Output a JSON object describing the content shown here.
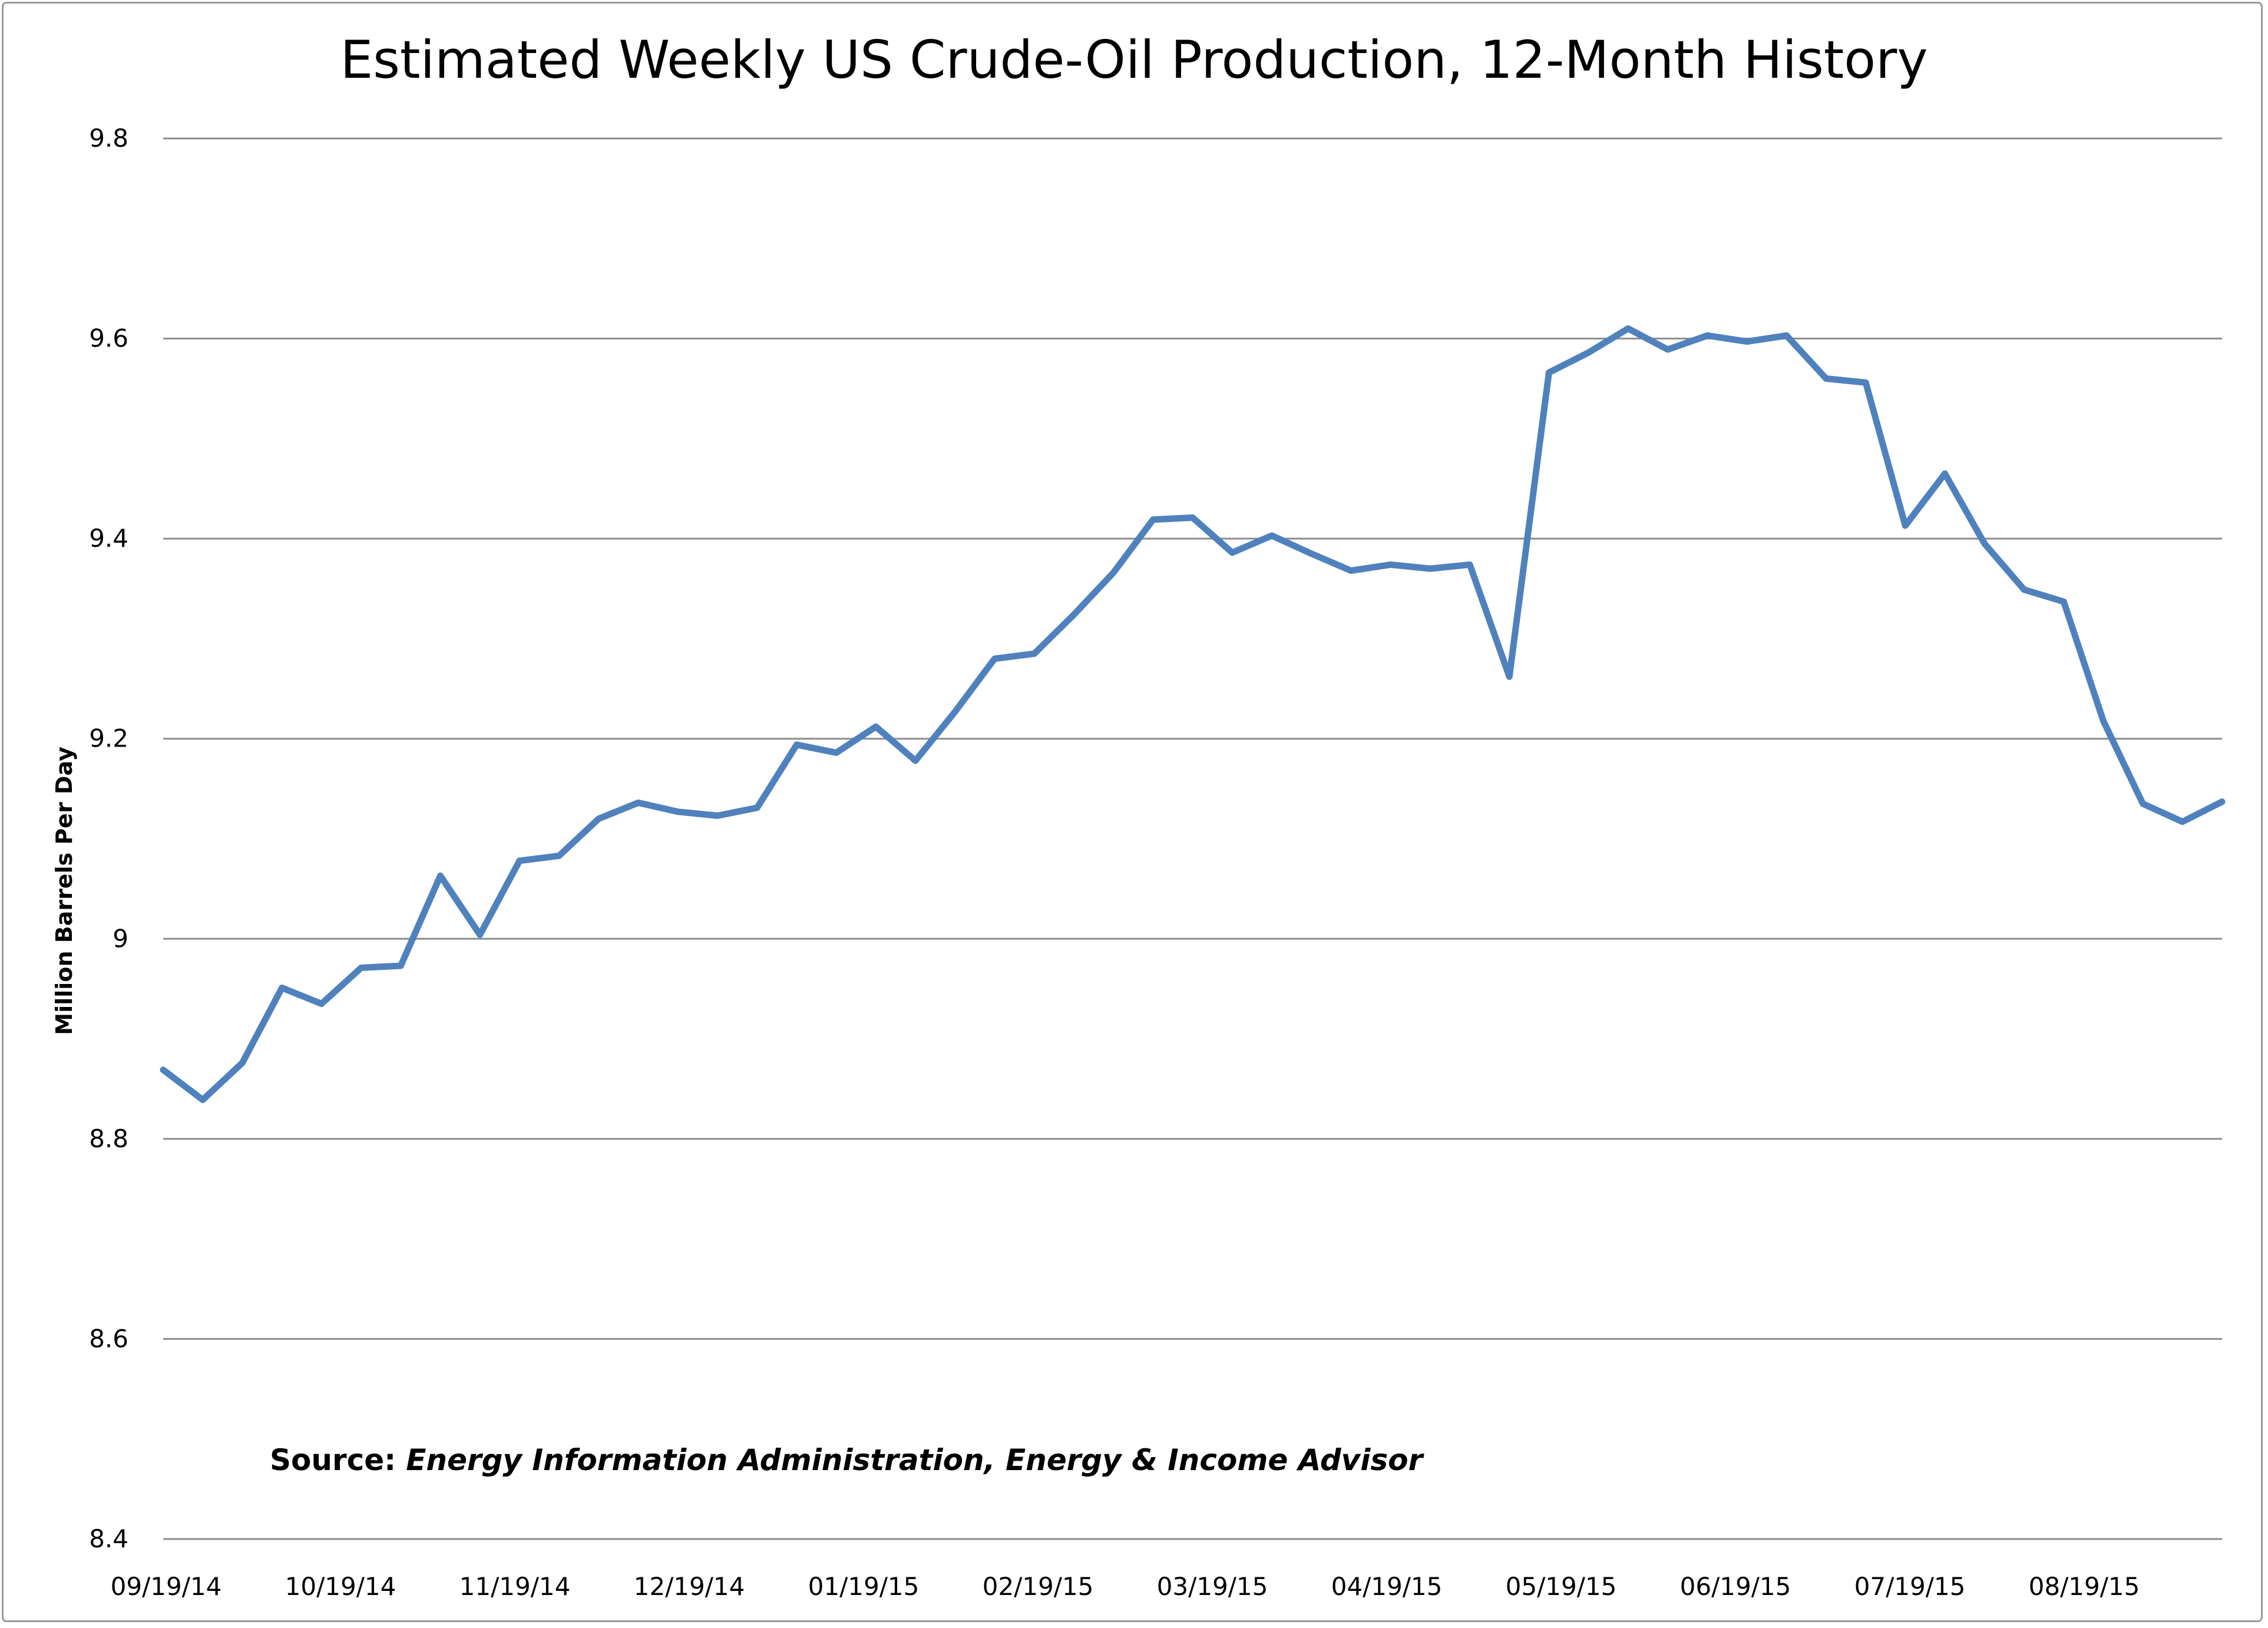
{
  "chart_data": {
    "type": "line",
    "title": "Estimated Weekly US Crude-Oil Production, 12-Month History",
    "xlabel": "",
    "ylabel": "Million Barrels Per Day",
    "ylim": [
      8.4,
      9.8
    ],
    "yticks": [
      "8.4",
      "8.6",
      "8.8",
      "9",
      "9.2",
      "9.4",
      "9.6",
      "9.8"
    ],
    "x_tick_labels": [
      "09/19/14",
      "10/19/14",
      "11/19/14",
      "12/19/14",
      "01/19/15",
      "02/19/15",
      "03/19/15",
      "04/19/15",
      "05/19/15",
      "06/19/15",
      "07/19/15",
      "08/19/15"
    ],
    "grid": true,
    "legend": "none",
    "line_color": "#4F81BD",
    "source_label": "Source:",
    "source_text": "Energy Information Administration, Energy & Income Advisor",
    "series": [
      {
        "values": [
          8.869,
          8.839,
          8.876,
          8.951,
          8.935,
          8.971,
          8.973,
          9.063,
          9.004,
          9.078,
          9.083,
          9.12,
          9.136,
          9.127,
          9.123,
          9.131,
          9.194,
          9.186,
          9.212,
          9.178,
          9.227,
          9.28,
          9.285,
          9.324,
          9.366,
          9.419,
          9.421,
          9.386,
          9.403,
          9.385,
          9.368,
          9.374,
          9.37,
          9.374,
          9.262,
          9.566,
          9.586,
          9.61,
          9.589,
          9.603,
          9.597,
          9.603,
          9.56,
          9.556,
          9.413,
          9.465,
          9.395,
          9.349,
          9.337,
          9.218,
          9.135,
          9.117,
          9.137
        ]
      }
    ]
  }
}
